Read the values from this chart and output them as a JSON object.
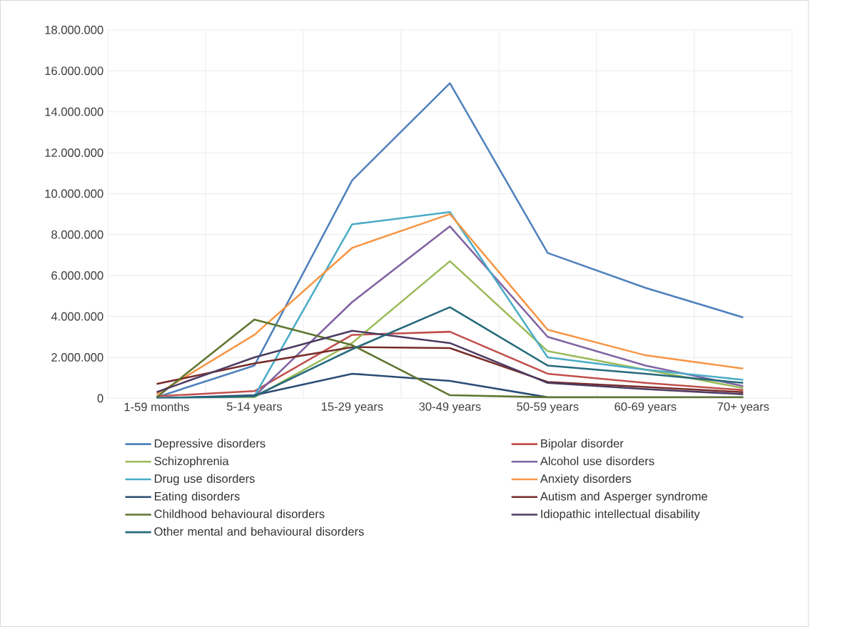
{
  "chart_data": {
    "type": "line",
    "categories": [
      "1-59 months",
      "5-14 years",
      "15-29 years",
      "30-49 years",
      "50-59 years",
      "60-69 years",
      "70+ years"
    ],
    "ylim": [
      0,
      18000000
    ],
    "yticks": [
      0,
      {
        "value": 2000000,
        "label": "2.000.000"
      },
      {
        "value": 4000000,
        "label": "4.000.000"
      },
      {
        "value": 6000000,
        "label": "6.000.000"
      },
      {
        "value": 8000000,
        "label": "8.000.000"
      },
      {
        "value": 10000000,
        "label": "10.000.000"
      },
      {
        "value": 12000000,
        "label": "12.000.000"
      },
      {
        "value": 14000000,
        "label": "14.000.000"
      },
      {
        "value": 16000000,
        "label": "16.000.000"
      },
      {
        "value": 18000000,
        "label": "18.000.000"
      }
    ],
    "grid": true,
    "legend": "bottom",
    "marker": "none",
    "line_style": "solid",
    "series": [
      {
        "name": "Depressive disorders",
        "color": "#4f81bd",
        "values": [
          50000,
          1600000,
          10650000,
          15400000,
          7100000,
          5400000,
          3950000
        ]
      },
      {
        "name": "Bipolar disorder",
        "color": "#c0504d",
        "values": [
          100000,
          350000,
          3100000,
          3250000,
          1200000,
          750000,
          400000
        ]
      },
      {
        "name": "Schizophrenia",
        "color": "#9bbb59",
        "values": [
          0,
          50000,
          2700000,
          6700000,
          2300000,
          1400000,
          500000
        ]
      },
      {
        "name": "Alcohol use disorders",
        "color": "#8064a2",
        "values": [
          0,
          100000,
          4700000,
          8400000,
          3000000,
          1600000,
          600000
        ]
      },
      {
        "name": "Drug use disorders",
        "color": "#4bacc6",
        "values": [
          0,
          100000,
          8500000,
          9100000,
          2000000,
          1400000,
          900000
        ]
      },
      {
        "name": "Anxiety disorders",
        "color": "#f79646",
        "values": [
          200000,
          3100000,
          7350000,
          9000000,
          3350000,
          2100000,
          1450000
        ]
      },
      {
        "name": "Eating disorders",
        "color": "#2c4d75",
        "values": [
          0,
          150000,
          1200000,
          850000,
          50000,
          50000,
          50000
        ]
      },
      {
        "name": "Autism and Asperger syndrome",
        "color": "#772c2a",
        "values": [
          700000,
          1700000,
          2500000,
          2450000,
          800000,
          550000,
          300000
        ]
      },
      {
        "name": "Childhood behavioural disorders",
        "color": "#5f7530",
        "values": [
          50000,
          3850000,
          2600000,
          150000,
          50000,
          50000,
          50000
        ]
      },
      {
        "name": "Idiopathic intellectual disability",
        "color": "#4d3b62",
        "values": [
          300000,
          2000000,
          3300000,
          2700000,
          750000,
          450000,
          200000
        ]
      },
      {
        "name": "Other mental and behavioural disorders",
        "color": "#276a7c",
        "values": [
          0,
          100000,
          2400000,
          4450000,
          1600000,
          1200000,
          750000
        ]
      }
    ]
  }
}
